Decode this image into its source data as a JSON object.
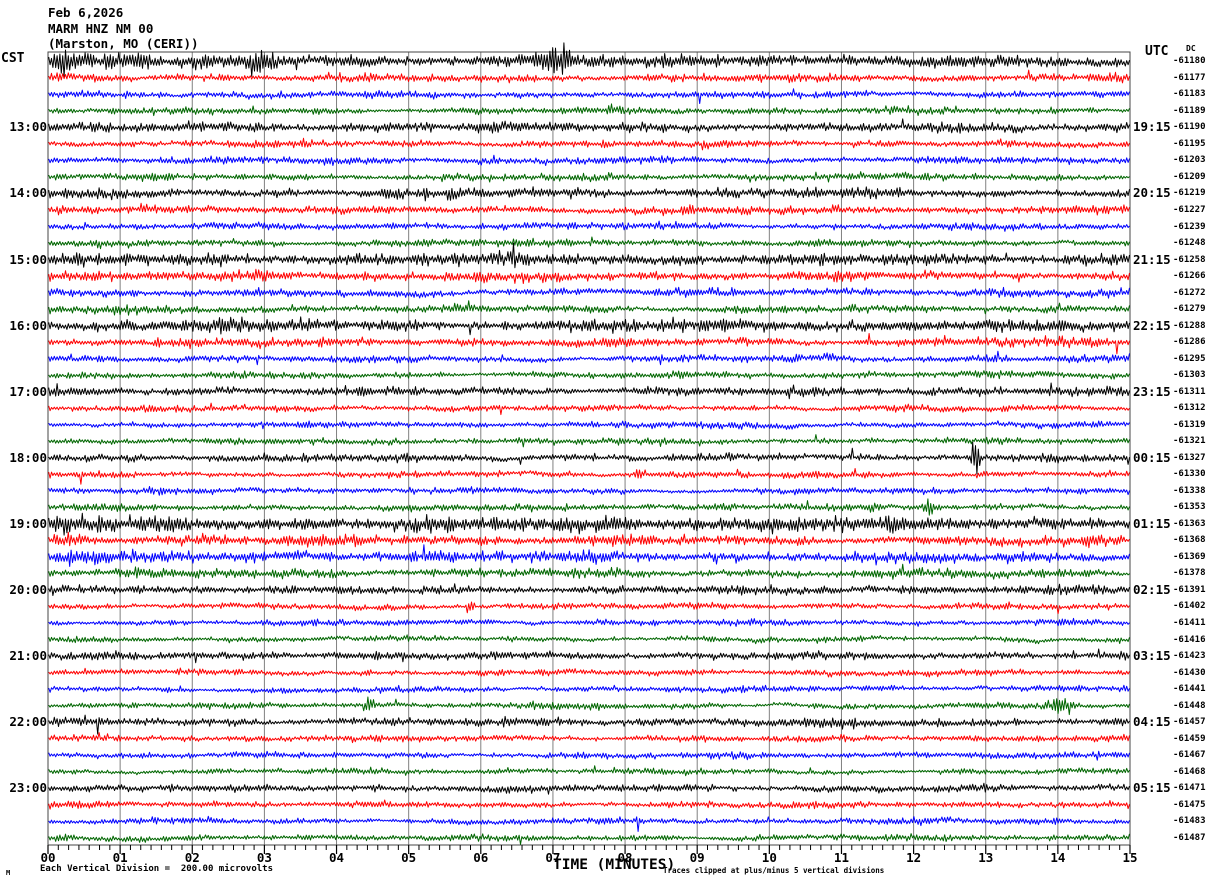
{
  "header": {
    "date": "Feb 6,2026",
    "station": "MARM HNZ NM 00",
    "location": "(Marston, MO (CERI))"
  },
  "left_axis": {
    "label": "CST",
    "times": [
      "13:00",
      "14:00",
      "15:00",
      "16:00",
      "17:00",
      "18:00",
      "19:00",
      "20:00",
      "21:00",
      "22:00",
      "23:00"
    ]
  },
  "right_axis": {
    "label": "UTC",
    "dc_header": "DC",
    "times": [
      "19:15",
      "20:15",
      "21:15",
      "22:15",
      "23:15",
      "00:15",
      "01:15",
      "02:15",
      "03:15",
      "04:15",
      "05:15"
    ]
  },
  "x_axis": {
    "title": "TIME (MINUTES)",
    "tick_labels": [
      "00",
      "01",
      "02",
      "03",
      "04",
      "05",
      "06",
      "07",
      "08",
      "09",
      "10",
      "11",
      "12",
      "13",
      "14",
      "15"
    ]
  },
  "footer": {
    "scale_note": "Each Vertical Division =  200.00 microvolts",
    "clip_note": "Traces clipped at plus/minus 5 vertical divisions",
    "corner_mark": "M"
  },
  "chart_data": {
    "type": "line",
    "subtype": "helicorder-seismogram",
    "title": "MARM HNZ NM 00 (Marston, MO (CERI)) Feb 6,2026",
    "station": "MARM HNZ NM 00",
    "timezone_left": "CST",
    "timezone_right": "UTC",
    "x_range_minutes": [
      0,
      15
    ],
    "minutes_per_row": 15,
    "rows": 48,
    "rows_per_hour": 4,
    "grid": true,
    "grid_color": "#808080",
    "frame_color": "#444444",
    "trace_colors": [
      "#000000",
      "#ff0000",
      "#0000ff",
      "#006600"
    ],
    "clip_divisions": 5,
    "microvolts_per_division": 200.0,
    "row_dc_microvolts": [
      -61180,
      -61177,
      -61183,
      -61189,
      -61190,
      -61195,
      -61203,
      -61209,
      -61219,
      -61227,
      -61239,
      -61248,
      -61258,
      -61266,
      -61272,
      -61279,
      -61288,
      -61286,
      -61295,
      -61303,
      -61311,
      -61312,
      -61319,
      -61321,
      -61327,
      -61330,
      -61338,
      -61353,
      -61363,
      -61368,
      -61369,
      -61378,
      -61391,
      -61402,
      -61411,
      -61416,
      -61423,
      -61430,
      -61441,
      -61448,
      -61457,
      -61459,
      -61467,
      -61468,
      -61471,
      -61475,
      -61483,
      -61487
    ],
    "row_activity": [
      1.6,
      1.15,
      1.0,
      1.05,
      1.25,
      1.0,
      1.0,
      1.1,
      1.25,
      1.15,
      1.0,
      1.05,
      1.55,
      1.35,
      1.15,
      1.15,
      1.55,
      1.25,
      1.05,
      1.0,
      1.1,
      0.9,
      0.9,
      0.95,
      1.0,
      0.9,
      0.9,
      1.05,
      1.9,
      1.5,
      1.6,
      1.35,
      1.1,
      0.9,
      0.85,
      0.8,
      1.0,
      0.9,
      0.85,
      0.9,
      1.05,
      0.9,
      0.9,
      0.85,
      0.95,
      0.9,
      0.9,
      0.95
    ],
    "events": [
      {
        "row": 0,
        "minute": 0.15,
        "width": 0.6,
        "gain": 3.0
      },
      {
        "row": 0,
        "minute": 1.15,
        "width": 0.5,
        "gain": 2.5
      },
      {
        "row": 0,
        "minute": 2.95,
        "width": 0.3,
        "gain": 2.2
      },
      {
        "row": 0,
        "minute": 7.05,
        "width": 0.35,
        "gain": 3.2
      },
      {
        "row": 0,
        "minute": 9.9,
        "width": 0.3,
        "gain": 1.9
      },
      {
        "row": 9,
        "minute": 1.45,
        "width": 0.55,
        "gain": 2.3
      },
      {
        "row": 13,
        "minute": 3.0,
        "width": 0.6,
        "gain": 1.9
      },
      {
        "row": 16,
        "minute": 2.3,
        "width": 0.7,
        "gain": 1.5
      },
      {
        "row": 24,
        "minute": 12.85,
        "width": 0.07,
        "gain": 9.0
      },
      {
        "row": 25,
        "minute": 8.2,
        "width": 0.1,
        "gain": 5.0
      },
      {
        "row": 27,
        "minute": 12.2,
        "width": 0.2,
        "gain": 2.6
      },
      {
        "row": 28,
        "minute": 0.25,
        "width": 0.5,
        "gain": 1.8
      },
      {
        "row": 29,
        "minute": 0.3,
        "width": 0.5,
        "gain": 2.0
      },
      {
        "row": 30,
        "minute": 0.35,
        "width": 0.5,
        "gain": 2.2
      },
      {
        "row": 33,
        "minute": 5.85,
        "width": 0.09,
        "gain": 5.0
      },
      {
        "row": 39,
        "minute": 4.45,
        "width": 0.1,
        "gain": 5.0
      },
      {
        "row": 39,
        "minute": 14.05,
        "width": 0.3,
        "gain": 6.0
      },
      {
        "row": 47,
        "minute": 8.5,
        "width": 0.5,
        "gain": 1.7
      }
    ]
  }
}
